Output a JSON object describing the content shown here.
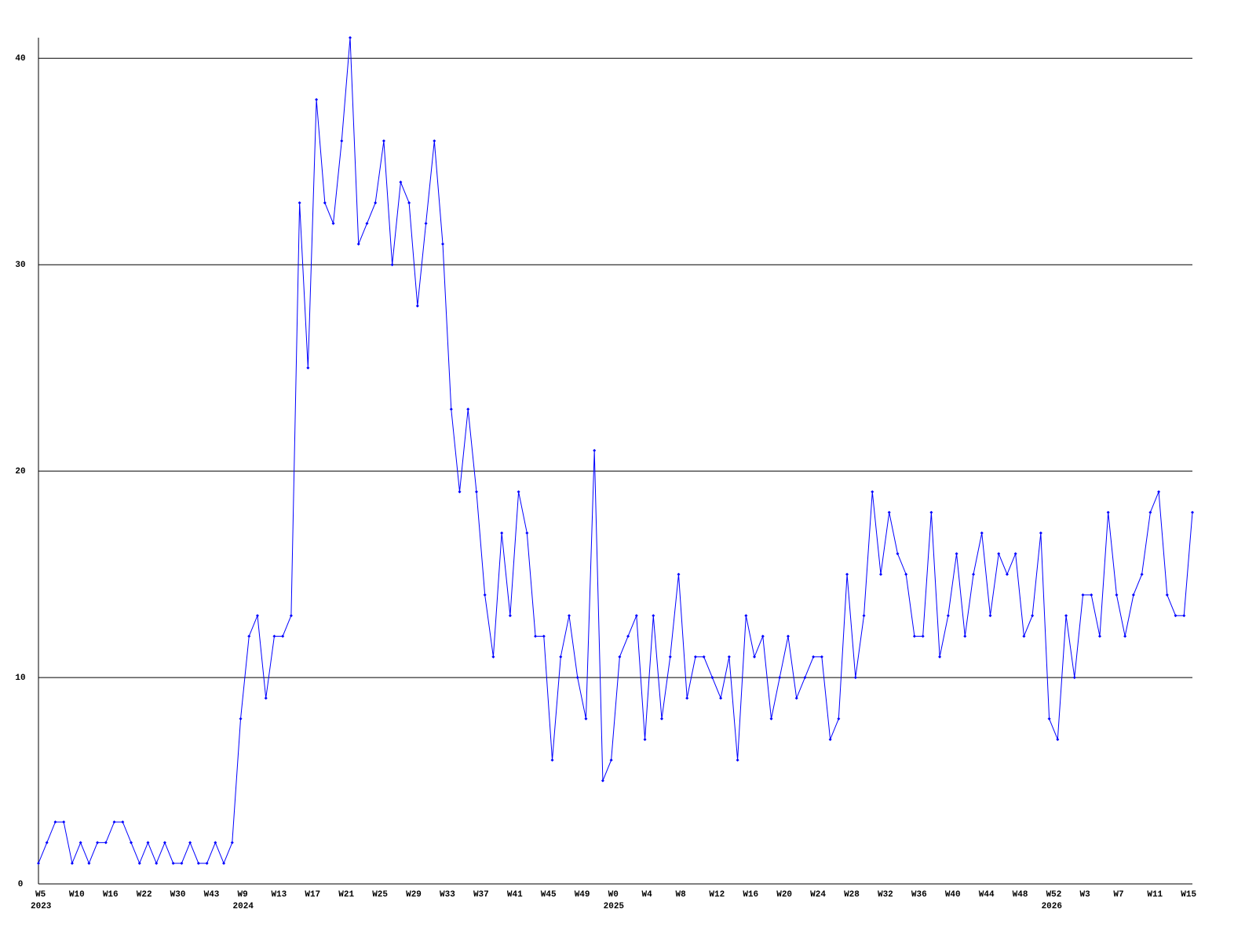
{
  "chart_data": {
    "type": "line",
    "color": "#0000ff",
    "grid": true,
    "ylim": [
      0,
      41
    ],
    "yticks": [
      0,
      10,
      20,
      30,
      40
    ],
    "categories": [
      "W5",
      null,
      null,
      null,
      "W10",
      null,
      null,
      null,
      "W16",
      null,
      null,
      null,
      "W22",
      null,
      null,
      null,
      "W30",
      null,
      null,
      null,
      "W43",
      null,
      null,
      null,
      "W9",
      null,
      null,
      null,
      "W13",
      null,
      null,
      null,
      "W17",
      null,
      null,
      null,
      "W21",
      null,
      null,
      null,
      "W25",
      null,
      null,
      null,
      "W29",
      null,
      null,
      null,
      "W33",
      null,
      null,
      null,
      "W37",
      null,
      null,
      null,
      "W41",
      null,
      null,
      null,
      "W45",
      null,
      null,
      null,
      "W49",
      null,
      null,
      null,
      "W0",
      null,
      null,
      null,
      "W4",
      null,
      null,
      null,
      "W8",
      null,
      null,
      null,
      "W12",
      null,
      null,
      null,
      "W16",
      null,
      null,
      null,
      "W20",
      null,
      null,
      null,
      "W24",
      null,
      null,
      null,
      "W28",
      null,
      null,
      null,
      "W32",
      null,
      null,
      null,
      "W36",
      null,
      null,
      null,
      "W40",
      null,
      null,
      null,
      "W44",
      null,
      null,
      null,
      "W48",
      null,
      null,
      null,
      "W52",
      null,
      null,
      null,
      "W3",
      null,
      null,
      null,
      "W7",
      null,
      null,
      null,
      "W11",
      null,
      null,
      null,
      "W15",
      null
    ],
    "years": [
      "2023",
      null,
      null,
      null,
      null,
      null,
      null,
      null,
      null,
      null,
      null,
      null,
      null,
      null,
      null,
      null,
      null,
      null,
      null,
      null,
      null,
      null,
      null,
      null,
      "2024",
      null,
      null,
      null,
      null,
      null,
      null,
      null,
      null,
      null,
      null,
      null,
      null,
      null,
      null,
      null,
      null,
      null,
      null,
      null,
      null,
      null,
      null,
      null,
      null,
      null,
      null,
      null,
      null,
      null,
      null,
      null,
      null,
      null,
      null,
      null,
      null,
      null,
      null,
      null,
      null,
      null,
      null,
      null,
      "2025",
      null,
      null,
      null,
      null,
      null,
      null,
      null,
      null,
      null,
      null,
      null,
      null,
      null,
      null,
      null,
      null,
      null,
      null,
      null,
      null,
      null,
      null,
      null,
      null,
      null,
      null,
      null,
      null,
      null,
      null,
      null,
      null,
      null,
      null,
      null,
      null,
      null,
      null,
      null,
      null,
      null,
      null,
      null,
      null,
      null,
      null,
      null,
      null,
      null,
      null,
      null,
      "2026",
      null,
      null,
      null,
      null,
      null,
      null,
      null,
      null,
      null,
      null,
      null,
      null,
      null,
      null,
      null,
      null,
      null
    ],
    "values": [
      1,
      2,
      3,
      3,
      1,
      2,
      1,
      2,
      2,
      3,
      3,
      2,
      1,
      2,
      1,
      2,
      1,
      1,
      2,
      1,
      1,
      2,
      1,
      2,
      8,
      12,
      13,
      9,
      12,
      12,
      13,
      33,
      25,
      38,
      33,
      32,
      36,
      41,
      31,
      32,
      33,
      36,
      30,
      34,
      33,
      28,
      32,
      36,
      31,
      23,
      19,
      23,
      19,
      14,
      11,
      17,
      13,
      19,
      17,
      12,
      12,
      6,
      11,
      13,
      10,
      8,
      21,
      5,
      6,
      11,
      12,
      13,
      7,
      13,
      8,
      11,
      15,
      9,
      11,
      11,
      10,
      9,
      11,
      6,
      13,
      11,
      12,
      8,
      10,
      12,
      9,
      10,
      11,
      11,
      7,
      8,
      15,
      10,
      13,
      19,
      15,
      18,
      16,
      15,
      12,
      12,
      18,
      11,
      13,
      16,
      12,
      15,
      17,
      13,
      16,
      15,
      16,
      12,
      13,
      17,
      8,
      7,
      13,
      10,
      14,
      14,
      12,
      18,
      14,
      12,
      14,
      15,
      18,
      19,
      14,
      13,
      13,
      18
    ]
  }
}
